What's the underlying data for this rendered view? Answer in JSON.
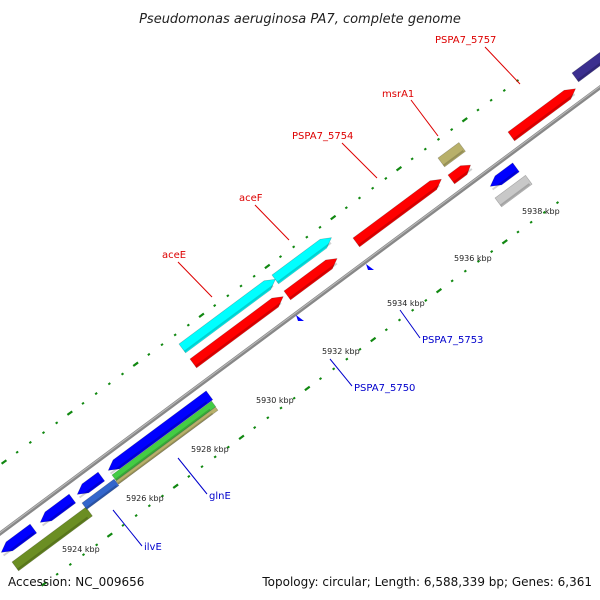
{
  "title": "Pseudomonas aeruginosa PA7, complete genome",
  "footer": {
    "accession": "Accession: NC_009656",
    "summary": "Topology: circular; Length: 6,588,339 bp; Genes: 6,361"
  },
  "colors": {
    "red": "#ff0000",
    "cyan": "#00ffff",
    "blue": "#0000ff",
    "navy": "#3b2f8f",
    "olive": "#6b8e23",
    "khaki": "#b8b06a",
    "green": "#44cc44",
    "steel": "#3366cc",
    "grey": "#c8c8c8",
    "backbone": "#888888",
    "tick": "#118811",
    "red_label": "#dd0000",
    "blue_label": "#0000cc"
  },
  "scale_ticks": [
    "5924 kbp",
    "5926 kbp",
    "5928 kbp",
    "5930 kbp",
    "5932 kbp",
    "5934 kbp",
    "5936 kbp",
    "5938 kbp"
  ],
  "gene_labels": [
    {
      "text": "PSPA7_5757",
      "strand": "forward"
    },
    {
      "text": "msrA1",
      "strand": "forward"
    },
    {
      "text": "PSPA7_5754",
      "strand": "forward"
    },
    {
      "text": "aceF",
      "strand": "forward"
    },
    {
      "text": "aceE",
      "strand": "forward"
    },
    {
      "text": "PSPA7_5753",
      "strand": "reverse"
    },
    {
      "text": "PSPA7_5750",
      "strand": "reverse"
    },
    {
      "text": "glnE",
      "strand": "reverse"
    },
    {
      "text": "ilvE",
      "strand": "reverse"
    }
  ]
}
